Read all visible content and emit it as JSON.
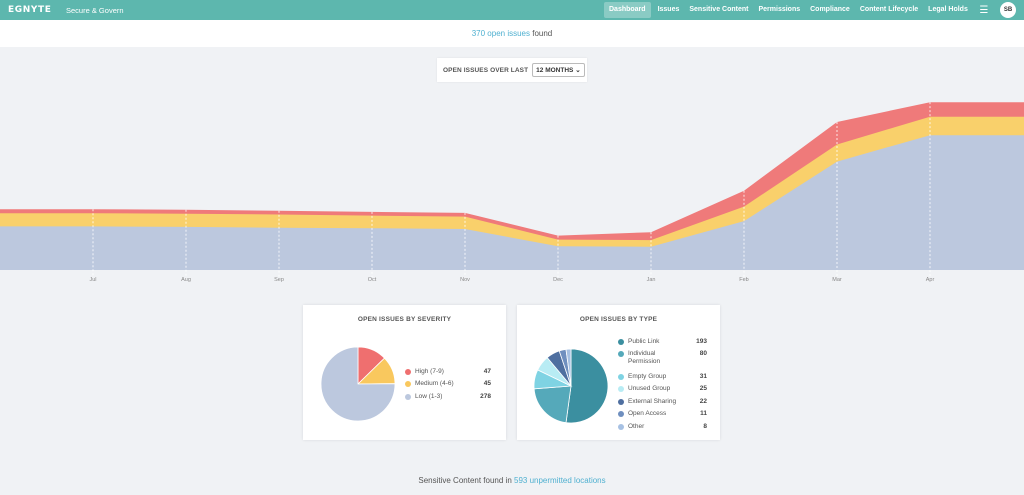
{
  "header": {
    "logo": "EGNYTE",
    "product": "Secure & Govern",
    "nav": [
      {
        "label": "Dashboard",
        "active": true
      },
      {
        "label": "Issues",
        "active": false
      },
      {
        "label": "Sensitive Content",
        "active": false
      },
      {
        "label": "Permissions",
        "active": false
      },
      {
        "label": "Compliance",
        "active": false
      },
      {
        "label": "Content Lifecycle",
        "active": false
      },
      {
        "label": "Legal Holds",
        "active": false
      }
    ],
    "menu_icon": "hamburger-icon",
    "avatar": "SB"
  },
  "summary": {
    "count_link": "370 open issues",
    "suffix": " found"
  },
  "range": {
    "label": "OPEN ISSUES OVER LAST",
    "selected": "12 MONTHS",
    "chevron": "chevron-down-icon"
  },
  "chart_data": [
    {
      "type": "area",
      "stacked": true,
      "x": [
        "Jul",
        "Aug",
        "Sep",
        "Oct",
        "Nov",
        "Dec",
        "Jan",
        "Feb",
        "Mar",
        "Apr"
      ],
      "series": [
        {
          "name": "Low",
          "color": "#bcc8de",
          "values": [
            165,
            163,
            160,
            158,
            155,
            90,
            88,
            185,
            410,
            510
          ]
        },
        {
          "name": "Medium",
          "color": "#f9d06b",
          "values": [
            50,
            50,
            50,
            48,
            47,
            25,
            25,
            55,
            65,
            70
          ]
        },
        {
          "name": "High",
          "color": "#ef7a7a",
          "values": [
            15,
            15,
            14,
            14,
            14,
            15,
            30,
            60,
            85,
            55
          ]
        }
      ],
      "grid": "vertical-dashed",
      "legend": "none"
    },
    {
      "type": "pie",
      "title": "OPEN ISSUES BY SEVERITY",
      "categories": [
        "High (7-9)",
        "Medium (4-6)",
        "Low (1-3)"
      ],
      "values": [
        47,
        45,
        278
      ],
      "colors": [
        "#ef6f6f",
        "#f9c85e",
        "#bcc8de"
      ],
      "legend": "right"
    },
    {
      "type": "pie",
      "title": "OPEN ISSUES BY TYPE",
      "categories": [
        "Public Link",
        "Individual Permission",
        "Empty Group",
        "Unused Group",
        "External Sharing",
        "Open Access",
        "Other"
      ],
      "values": [
        193,
        80,
        31,
        25,
        22,
        11,
        8
      ],
      "colors": [
        "#3b8fa0",
        "#55a9ba",
        "#7fd3e3",
        "#b8ecf4",
        "#4f6fa0",
        "#6f8fbf",
        "#a7c1e3"
      ],
      "legend": "right"
    }
  ],
  "footer": {
    "prefix": "Sensitive Content found in ",
    "count": "593",
    "suffix": " unpermitted locations"
  }
}
